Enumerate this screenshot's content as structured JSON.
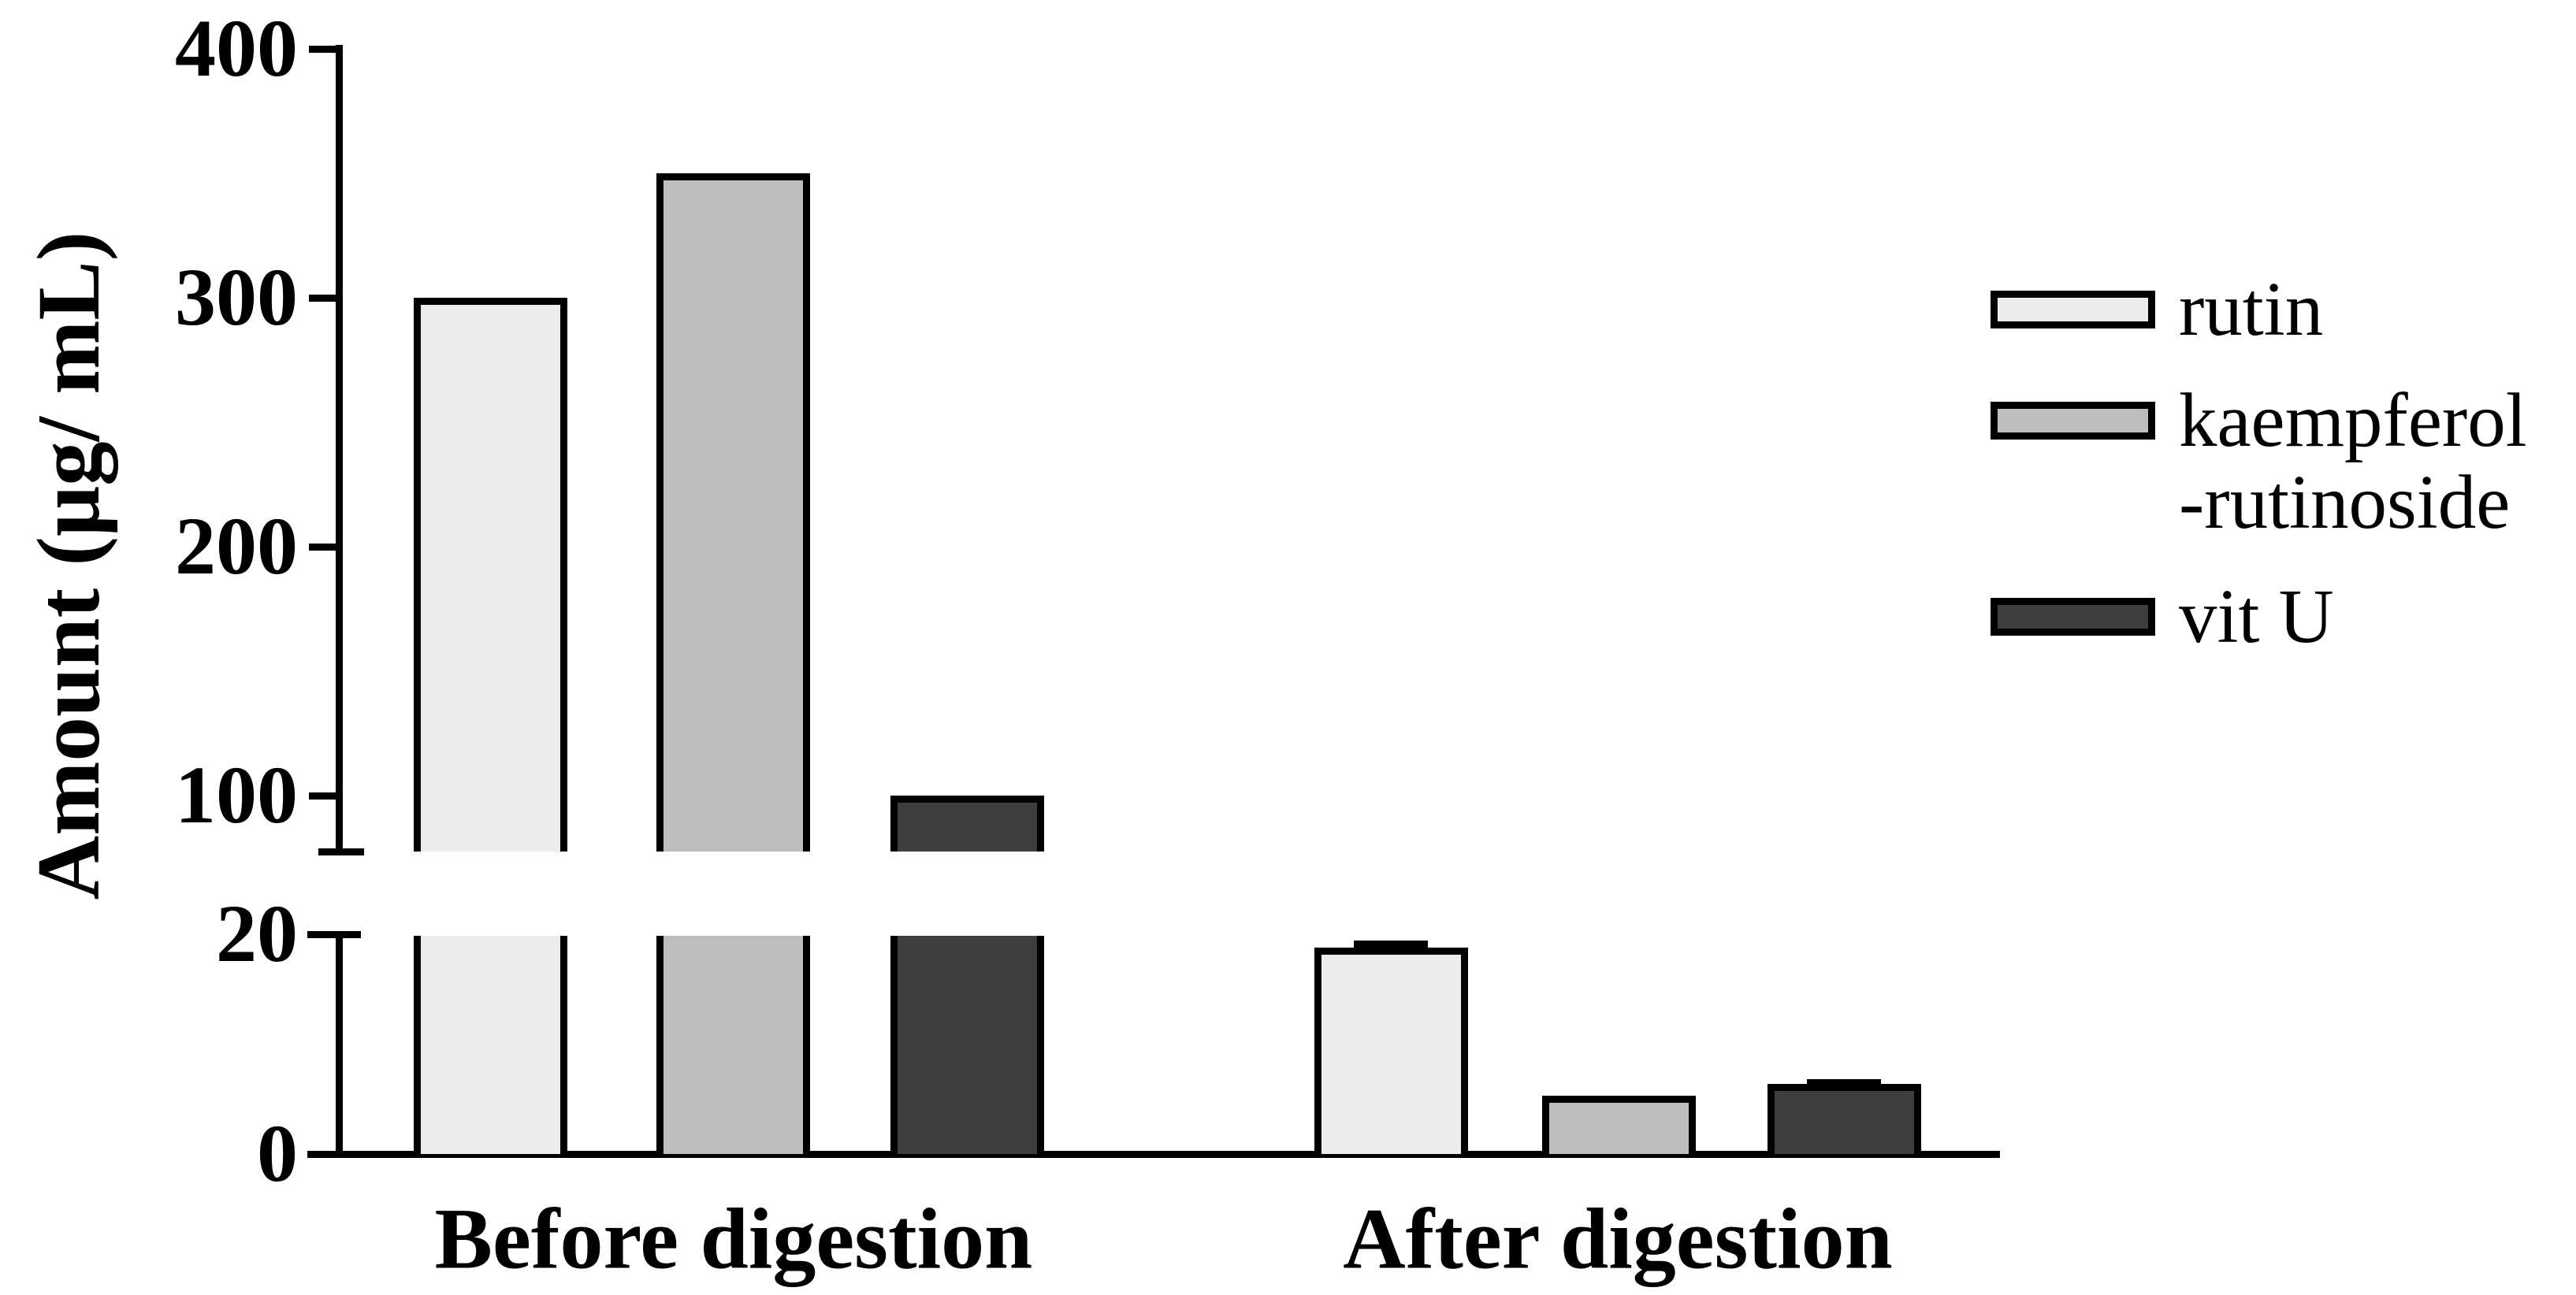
{
  "figure": {
    "background": "#ffffff"
  },
  "chart_data": {
    "type": "bar",
    "title": "",
    "xlabel": "",
    "ylabel": "Amount (μg/ mL)",
    "categories": [
      "Before digestion",
      "After digestion"
    ],
    "series": [
      {
        "name": "rutin",
        "legend_lines": [
          "rutin"
        ],
        "color": "#ececec",
        "values": [
          300,
          18.8
        ],
        "errors": [
          0,
          0.6
        ]
      },
      {
        "name": "kaempferol-rutinoside",
        "legend_lines": [
          "kaempferol",
          "-rutinoside"
        ],
        "color": "#bdbdbd",
        "values": [
          350,
          5.3
        ],
        "errors": [
          0,
          0
        ]
      },
      {
        "name": "vit U",
        "legend_lines": [
          "vit U"
        ],
        "color": "#3e3e3e",
        "values": [
          100,
          6.4
        ],
        "errors": [
          0,
          0.4
        ]
      }
    ],
    "axis_break": {
      "upper_axis": {
        "ticks": [
          100,
          200,
          300,
          400
        ],
        "range_shown": [
          80,
          400
        ]
      },
      "lower_axis": {
        "ticks": [
          0,
          20
        ],
        "range_shown": [
          0,
          20
        ]
      }
    },
    "ylim_upper": [
      80,
      400
    ],
    "ylim_lower": [
      0,
      20
    ],
    "legend_position": "right",
    "grid": false,
    "bar_outline_color": "#000000",
    "axis_color": "#000000"
  }
}
